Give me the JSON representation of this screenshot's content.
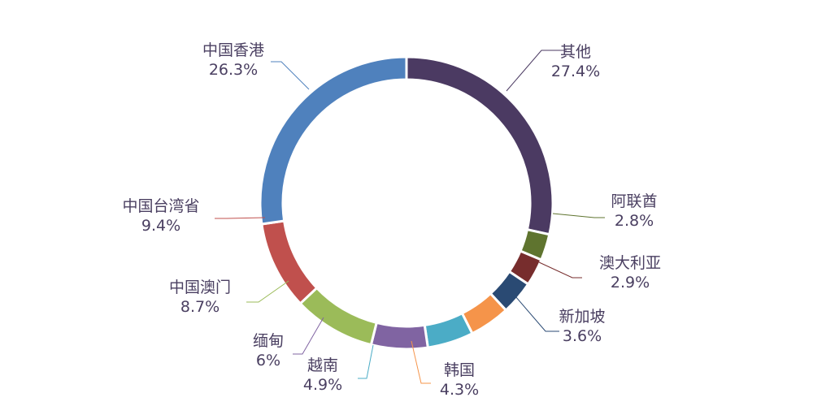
{
  "chart_data": {
    "type": "pie",
    "style": "donut",
    "title": "",
    "slices": [
      {
        "name": "其他",
        "value": 27.4,
        "label": "27.4%",
        "color": "#4b3a62"
      },
      {
        "name": "阿联酋",
        "value": 2.8,
        "label": "2.8%",
        "color": "#5f742f"
      },
      {
        "name": "澳大利亚",
        "value": 2.9,
        "label": "2.9%",
        "color": "#772d2d"
      },
      {
        "name": "新加坡",
        "value": 3.6,
        "label": "3.6%",
        "color": "#2a4a73"
      },
      {
        "name": "韩国",
        "value": 4.3,
        "label": "4.3%",
        "color": "#f5944a"
      },
      {
        "name": "越南",
        "value": 4.9,
        "label": "4.9%",
        "color": "#4bacc6"
      },
      {
        "name": "缅甸",
        "value": 6.0,
        "label": "6%",
        "color": "#8064a2"
      },
      {
        "name": "中国澳门",
        "value": 8.7,
        "label": "8.7%",
        "color": "#9bbb59"
      },
      {
        "name": "中国台湾省",
        "value": 9.4,
        "label": "9.4%",
        "color": "#c0504d"
      },
      {
        "name": "中国香港",
        "value": 26.3,
        "label": "26.3%",
        "color": "#4f81bd"
      }
    ]
  }
}
